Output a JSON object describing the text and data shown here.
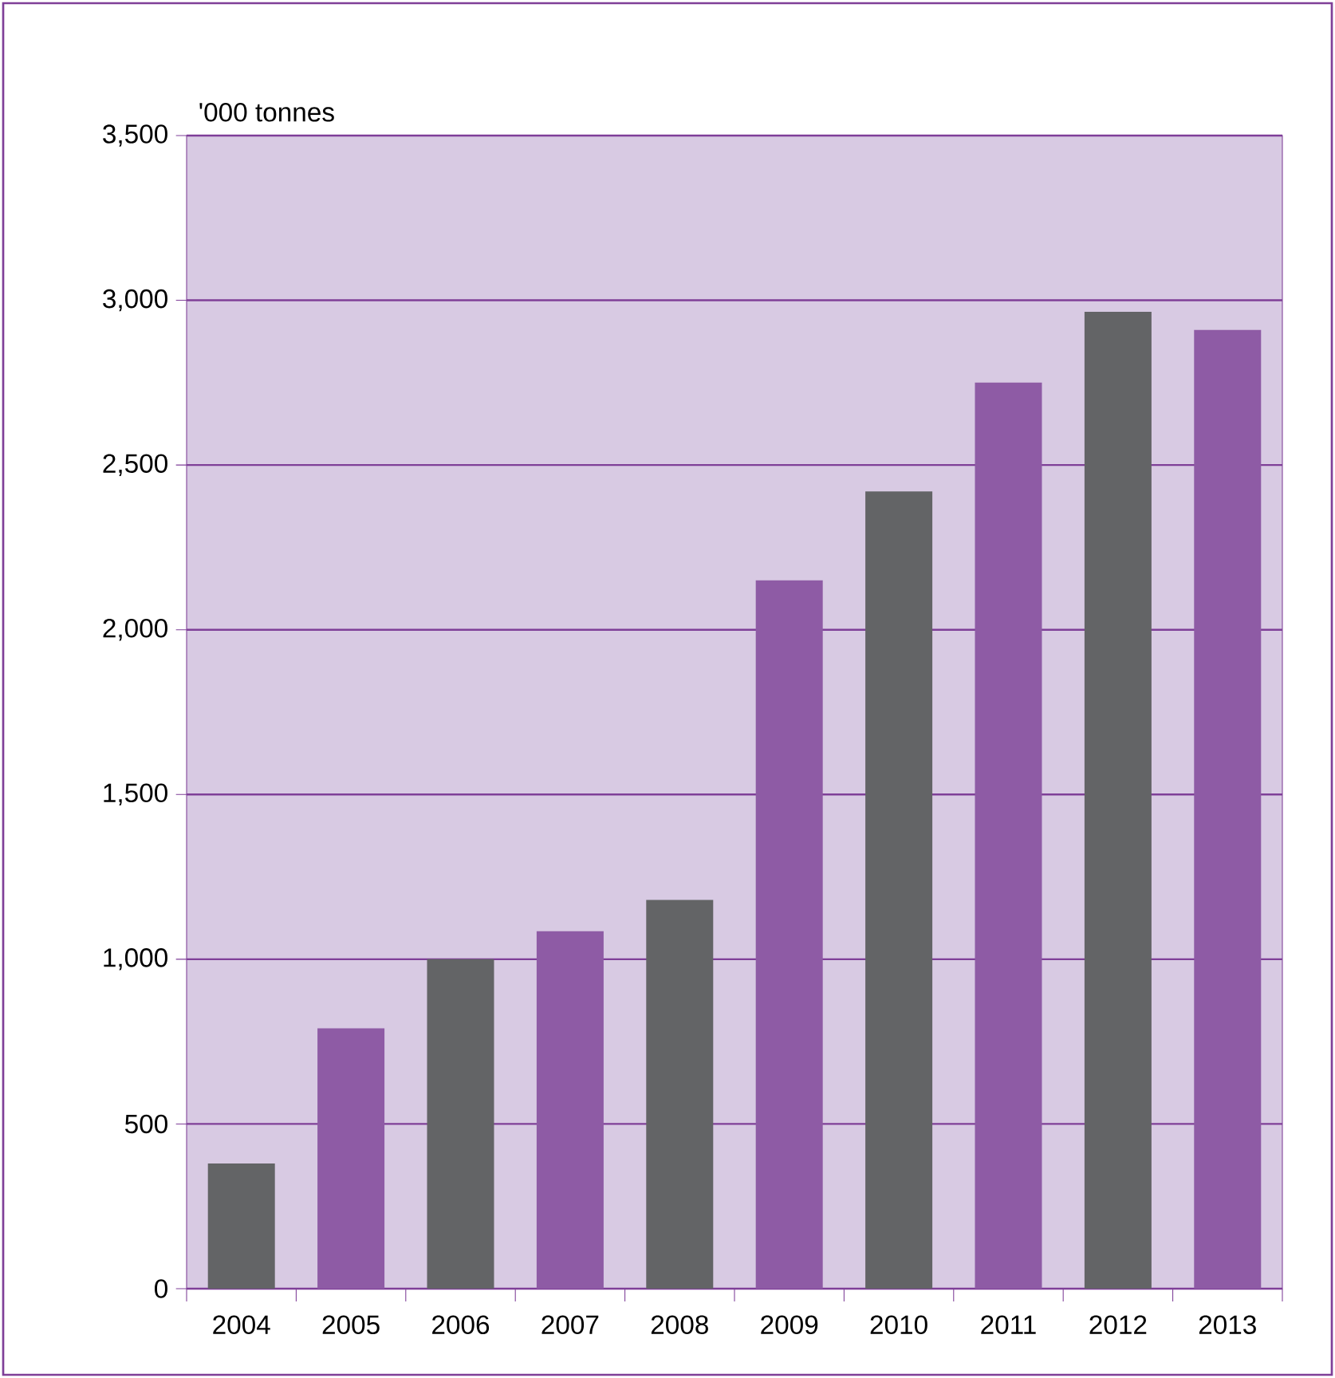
{
  "chart_data": {
    "type": "bar",
    "ylabel": "'000 tonnes",
    "categories": [
      "2004",
      "2005",
      "2006",
      "2007",
      "2008",
      "2009",
      "2010",
      "2011",
      "2012",
      "2013"
    ],
    "values": [
      380,
      790,
      1000,
      1085,
      1180,
      2150,
      2420,
      2750,
      2965,
      2910
    ],
    "colors": [
      "#636466",
      "#8e5ba5",
      "#636466",
      "#8e5ba5",
      "#636466",
      "#8e5ba5",
      "#636466",
      "#8e5ba5",
      "#636466",
      "#8e5ba5"
    ],
    "ylim": [
      0,
      3500
    ],
    "yticks": [
      0,
      500,
      {
        "value": 1000,
        "label": "1,000"
      },
      {
        "value": 1500,
        "label": "1,500"
      },
      {
        "value": 2000,
        "label": "2,000"
      },
      {
        "value": 2500,
        "label": "2,500"
      },
      {
        "value": 3000,
        "label": "3,000"
      },
      {
        "value": 3500,
        "label": "3,500"
      }
    ],
    "grid": "y"
  }
}
